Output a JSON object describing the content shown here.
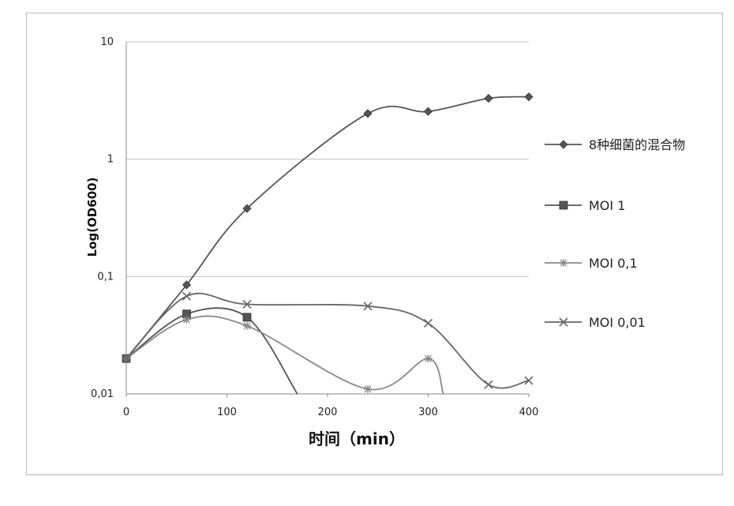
{
  "chart_data": {
    "type": "line",
    "xlabel": "时间（min）",
    "ylabel": "Log(OD600)",
    "xlim": [
      0,
      400
    ],
    "ylim": [
      0.01,
      10
    ],
    "yscale": "log",
    "xticks": [
      0,
      100,
      200,
      300,
      400
    ],
    "xtick_labels": [
      "0",
      "100",
      "200",
      "300",
      "400"
    ],
    "yticks": [
      0.01,
      0.1,
      1,
      10
    ],
    "ytick_labels": [
      "0,01",
      "0,1",
      "1",
      "10"
    ],
    "grid": "horizontal",
    "legend_position": "right",
    "series": [
      {
        "name": "8种细菌的混合物",
        "color": "#555555",
        "marker": "diamond",
        "x": [
          0,
          60,
          120,
          240,
          300,
          360,
          400
        ],
        "y": [
          0.02,
          0.085,
          0.38,
          2.45,
          2.55,
          3.3,
          3.4
        ]
      },
      {
        "name": "MOI 1",
        "color": "#555555",
        "marker": "square",
        "x": [
          0,
          60,
          120,
          170
        ],
        "y": [
          0.02,
          0.048,
          0.045,
          0.01
        ]
      },
      {
        "name": "MOI 0,1",
        "color": "#888888",
        "marker": "star",
        "x": [
          0,
          60,
          120,
          240,
          300,
          315
        ],
        "y": [
          0.02,
          0.043,
          0.038,
          0.011,
          0.02,
          0.01
        ]
      },
      {
        "name": "MOI 0,01",
        "color": "#666666",
        "marker": "x",
        "x": [
          0,
          60,
          120,
          240,
          300,
          360,
          400
        ],
        "y": [
          0.02,
          0.068,
          0.058,
          0.056,
          0.04,
          0.012,
          0.013
        ]
      }
    ]
  }
}
